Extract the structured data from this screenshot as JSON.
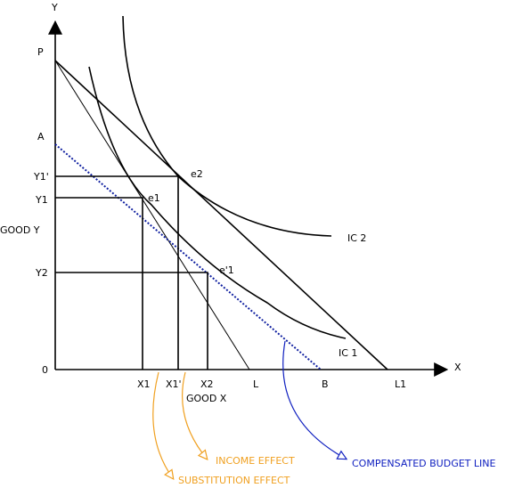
{
  "axes": {
    "y": "Y",
    "x": "X",
    "origin": "0",
    "y_title": "GOOD Y",
    "x_title": "GOOD X"
  },
  "y_labels": [
    "P",
    "A",
    "Y1'",
    "Y1",
    "Y2"
  ],
  "x_labels": [
    "X1",
    "X1'",
    "X2",
    "L",
    "B",
    "L1"
  ],
  "points": [
    "e2",
    "e1",
    "e'1"
  ],
  "curves": [
    "IC 2",
    "IC 1"
  ],
  "annotations": [
    "INCOME EFFECT",
    "SUBSTITUTION EFFECT",
    "COMPENSATED BUDGET LINE"
  ]
}
